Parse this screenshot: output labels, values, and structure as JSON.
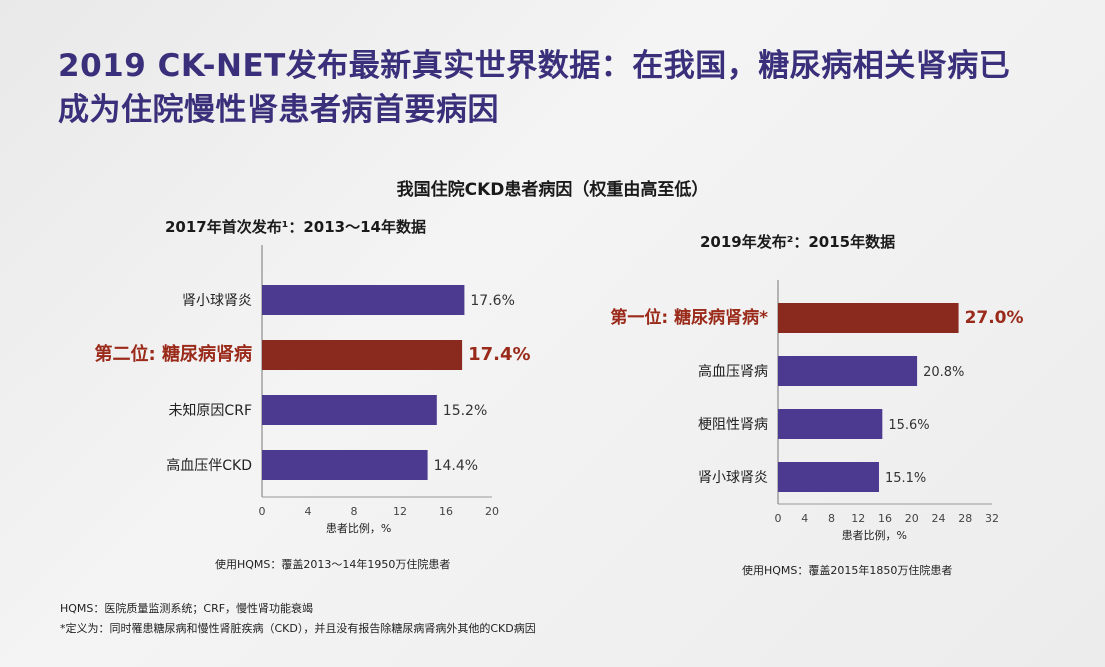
{
  "slide": {
    "title_line1": "2019 CK-NET发布最新真实世界数据：在我国，糖尿病相关肾病已",
    "title_line2": "成为住院慢性肾患者病首要病因",
    "subtitle": "我国住院CKD患者病因（权重由高至低）",
    "footnote1": "HQMS：医院质量监测系统；CRF，慢性肾功能衰竭",
    "footnote2": "*定义为：同时罹患糖尿病和慢性肾脏疾病（CKD），并且没有报告除糖尿病肾病外其他的CKD病因"
  },
  "colors": {
    "bar": "#4b3a8f",
    "highlight": "#8a2a1e",
    "highlight_text": "#9a2a1a",
    "title": "#3a2f7a"
  },
  "chart_data": [
    {
      "type": "bar",
      "orientation": "horizontal",
      "title": "2017年首次发布¹：2013～14年数据",
      "categories": [
        "肾小球肾炎",
        "第二位: 糖尿病肾病",
        "未知原因CRF",
        "高血压伴CKD"
      ],
      "values": [
        17.6,
        17.4,
        15.2,
        14.4
      ],
      "value_labels": [
        "17.6%",
        "17.4%",
        "15.2%",
        "14.4%"
      ],
      "highlight_index": 1,
      "xlabel": "患者比例，%",
      "xlim": [
        0,
        20
      ],
      "xticks": [
        "0",
        "4",
        "8",
        "12",
        "16",
        "20"
      ],
      "note": "使用HQMS：覆盖2013～14年1950万住院患者"
    },
    {
      "type": "bar",
      "orientation": "horizontal",
      "title": "2019年发布²：2015年数据",
      "categories": [
        "第一位: 糖尿病肾病*",
        "高血压肾病",
        "梗阻性肾病",
        "肾小球肾炎"
      ],
      "values": [
        27.0,
        20.8,
        15.6,
        15.1
      ],
      "value_labels": [
        "27.0%",
        "20.8%",
        "15.6%",
        "15.1%"
      ],
      "highlight_index": 0,
      "xlabel": "患者比例，%",
      "xlim": [
        0,
        32
      ],
      "xticks": [
        "0",
        "4",
        "8",
        "12",
        "16",
        "20",
        "24",
        "28",
        "32"
      ],
      "note": "使用HQMS：覆盖2015年1850万住院患者"
    }
  ]
}
